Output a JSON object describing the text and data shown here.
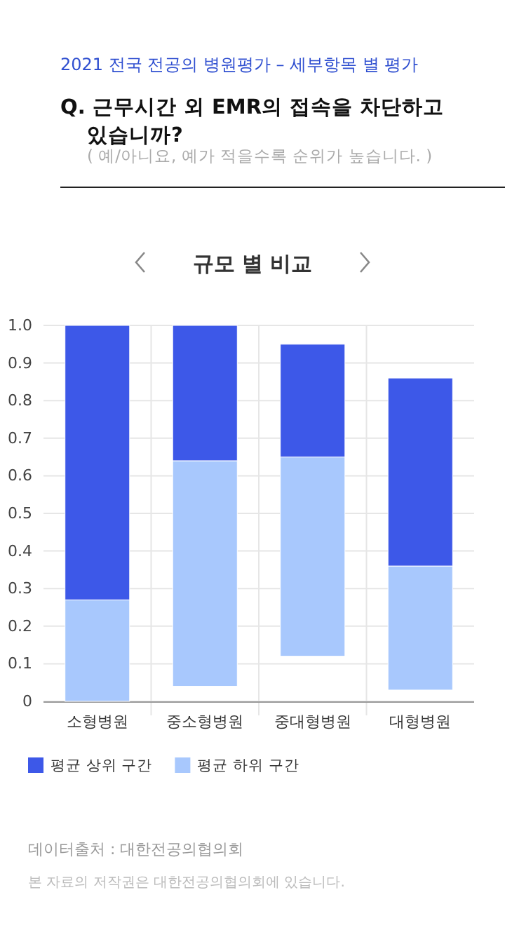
{
  "chart_data": {
    "type": "bar",
    "title": "Q. 근무시간 외 EMR의 접속을 차단하고 있습니까?",
    "subtitle": "( 예/아니요, 예가 적을수록 순위가 높습니다. )",
    "annotations": [
      "2021 전국 전공의 병원평가 – 세부항목 별 평가",
      "규모 별 비교",
      "데이터출처 : 대한전공의협의회",
      "본 자료의 저작권은 대한전공의협의회에 있습니다."
    ],
    "categories": [
      "소형병원",
      "중소형병원",
      "중대형병원",
      "대형병원"
    ],
    "series": [
      {
        "name": "평균 하위 구간",
        "color": "#a8c8fd",
        "base": [
          0,
          0.04,
          0.12,
          0.03
        ],
        "values": [
          0.27,
          0.6,
          0.53,
          0.33
        ]
      },
      {
        "name": "평균 상위 구간",
        "color": "#3d58e8",
        "base": [
          0.27,
          0.64,
          0.65,
          0.36
        ],
        "values": [
          0.73,
          0.36,
          0.3,
          0.5
        ]
      }
    ],
    "ylim": [
      0,
      1
    ],
    "yticks": [
      {
        "value": 0,
        "label": "0"
      },
      {
        "value": 0.1,
        "label": "0.1"
      },
      {
        "value": 0.2,
        "label": "0.2"
      },
      {
        "value": 0.3,
        "label": "0.3"
      },
      {
        "value": 0.4,
        "label": "0.4"
      },
      {
        "value": 0.5,
        "label": "0.5"
      },
      {
        "value": 0.6,
        "label": "0.6"
      },
      {
        "value": 0.7,
        "label": "0.7"
      },
      {
        "value": 0.8,
        "label": "0.8"
      },
      {
        "value": 0.9,
        "label": "0.9"
      },
      {
        "value": 1,
        "label": "1.0"
      }
    ],
    "grid": true,
    "legend": "bottom left"
  }
}
